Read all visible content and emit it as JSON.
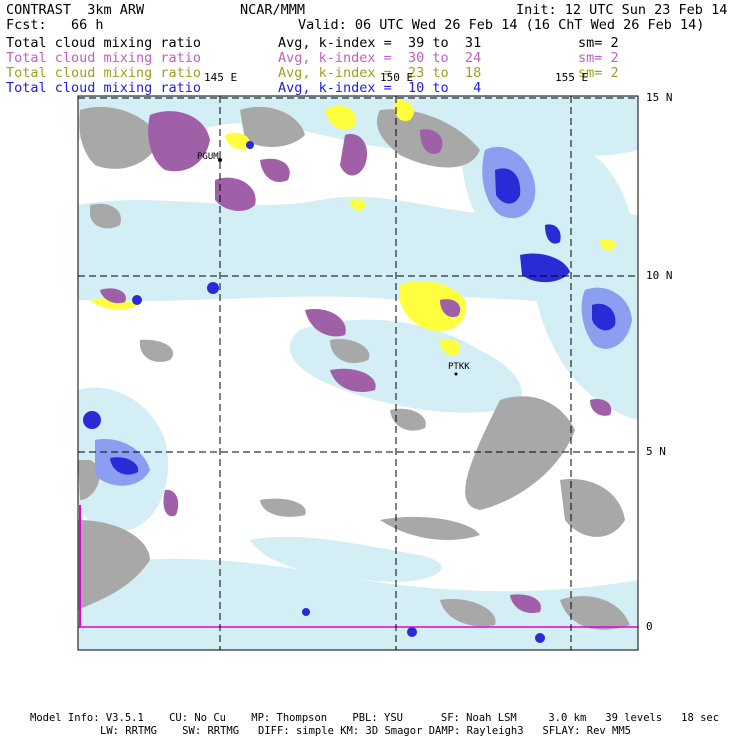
{
  "header": {
    "title": "CONTRAST  3km ARW",
    "org": "NCAR/MMM",
    "init": "Init: 12 UTC Sun 23 Feb 14",
    "fcst": "Fcst:   66 h",
    "valid": "Valid: 06 UTC Wed 26 Feb 14 (16 ChT Wed 26 Feb 14)"
  },
  "fields": [
    {
      "name": "Total cloud mixing ratio",
      "avg": "Avg, k-index =  39 to  31",
      "sm": "sm= 2",
      "color": "#000000"
    },
    {
      "name": "Total cloud mixing ratio",
      "avg": "Avg, k-index =  30 to  24",
      "sm": "sm= 2",
      "color": "#c060c0"
    },
    {
      "name": "Total cloud mixing ratio",
      "avg": "Avg, k-index =  23 to  18",
      "sm": "sm= 2",
      "color": "#a0a020"
    },
    {
      "name": "Total cloud mixing ratio",
      "avg": "Avg, k-index =  10 to   4",
      "sm": "",
      "color": "#2020e0"
    }
  ],
  "map": {
    "lon_labels": [
      "145 E",
      "150 E",
      "155 E"
    ],
    "lat_labels": [
      "15 N",
      "10 N",
      "5 N",
      "0"
    ],
    "stations": [
      "PGUM",
      "PTKK"
    ],
    "colors": {
      "high_cloud": "#a8a8a8",
      "mid_cloud": "#a060a8",
      "low_cloud": "#ffff40",
      "thin_cloud": "#d4eef6",
      "dense_cloud": "#2a2ad6",
      "equator": "#e000e0"
    }
  },
  "footer": {
    "line1": "Model Info: V3.5.1    CU: No Cu    MP: Thompson    PBL: YSU      SF: Noah LSM     3.0 km   39 levels   18 sec",
    "line2": "LW: RRTMG    SW: RRTMG   DIFF: simple KM: 3D Smagor DAMP: Rayleigh3   SFLAY: Rev MM5"
  }
}
